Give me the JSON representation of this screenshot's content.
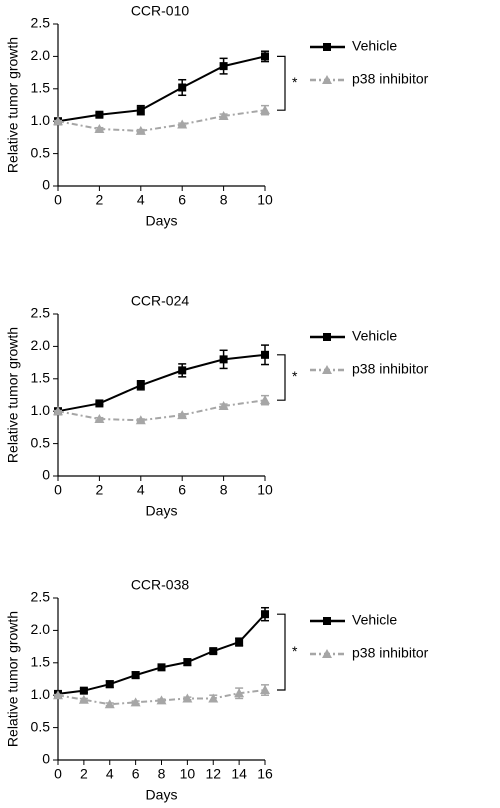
{
  "chart_data": [
    {
      "type": "line",
      "title": "CCR-010",
      "x_label": "Days",
      "y_label": "Relative tumor growth",
      "annotation": "*",
      "x": [
        0,
        2,
        4,
        6,
        8,
        10
      ],
      "xlim": [
        0,
        10
      ],
      "xticks": [
        0,
        2,
        4,
        6,
        8,
        10
      ],
      "ylim": [
        0,
        2.5
      ],
      "yticks": [
        0,
        0.5,
        {
          "value": 1,
          "label": "1.0"
        },
        1.5,
        {
          "value": 2,
          "label": "2.0"
        },
        2.5
      ],
      "series": [
        {
          "name": "Vehicle",
          "color": "#000000",
          "marker": "square",
          "linestyle": "solid",
          "values": [
            1.0,
            1.1,
            1.17,
            1.52,
            1.85,
            2.0
          ],
          "errors": [
            0.02,
            0.03,
            0.07,
            0.12,
            0.12,
            0.08
          ]
        },
        {
          "name": "p38 inhibitor",
          "color": "#a6a6a6",
          "marker": "triangle",
          "linestyle": "dashed",
          "values": [
            1.0,
            0.88,
            0.85,
            0.95,
            1.08,
            1.17
          ],
          "errors": [
            0.01,
            0.02,
            0.02,
            0.02,
            0.03,
            0.07
          ]
        }
      ]
    },
    {
      "type": "line",
      "title": "CCR-024",
      "x_label": "Days",
      "y_label": "Relative tumor growth",
      "annotation": "*",
      "x": [
        0,
        2,
        4,
        6,
        8,
        10
      ],
      "xlim": [
        0,
        10
      ],
      "xticks": [
        0,
        2,
        4,
        6,
        8,
        10
      ],
      "ylim": [
        0,
        2.5
      ],
      "yticks": [
        0,
        0.5,
        {
          "value": 1,
          "label": "1.0"
        },
        1.5,
        {
          "value": 2,
          "label": "2.0"
        },
        2.5
      ],
      "series": [
        {
          "name": "Vehicle",
          "color": "#000000",
          "marker": "square",
          "linestyle": "solid",
          "values": [
            1.0,
            1.12,
            1.4,
            1.63,
            1.8,
            1.87
          ],
          "errors": [
            0.02,
            0.02,
            0.07,
            0.1,
            0.14,
            0.15
          ]
        },
        {
          "name": "p38 inhibitor",
          "color": "#a6a6a6",
          "marker": "triangle",
          "linestyle": "dashed",
          "values": [
            1.0,
            0.88,
            0.86,
            0.94,
            1.08,
            1.17
          ],
          "errors": [
            0.01,
            0.02,
            0.02,
            0.02,
            0.03,
            0.07
          ]
        }
      ]
    },
    {
      "type": "line",
      "title": "CCR-038",
      "x_label": "Days",
      "y_label": "Relative tumor growth",
      "annotation": "*",
      "x": [
        0,
        2,
        4,
        6,
        8,
        10,
        12,
        14,
        16
      ],
      "xlim": [
        0,
        16
      ],
      "xticks": [
        0,
        2,
        4,
        6,
        8,
        10,
        12,
        14,
        16
      ],
      "ylim": [
        0,
        2.5
      ],
      "yticks": [
        0,
        0.5,
        {
          "value": 1,
          "label": "1.0"
        },
        1.5,
        {
          "value": 2,
          "label": "2.0"
        },
        2.5
      ],
      "series": [
        {
          "name": "Vehicle",
          "color": "#000000",
          "marker": "square",
          "linestyle": "solid",
          "values": [
            1.02,
            1.07,
            1.17,
            1.31,
            1.43,
            1.51,
            1.68,
            1.82,
            2.25
          ],
          "errors": [
            0.02,
            0.03,
            0.05,
            0.05,
            0.03,
            0.05,
            0.03,
            0.06,
            0.1
          ]
        },
        {
          "name": "p38 inhibitor",
          "color": "#a6a6a6",
          "marker": "triangle",
          "linestyle": "dashed",
          "values": [
            1.0,
            0.93,
            0.86,
            0.89,
            0.92,
            0.95,
            0.95,
            1.03,
            1.08
          ],
          "errors": [
            0.01,
            0.02,
            0.02,
            0.02,
            0.02,
            0.02,
            0.05,
            0.08,
            0.08
          ]
        }
      ]
    }
  ]
}
